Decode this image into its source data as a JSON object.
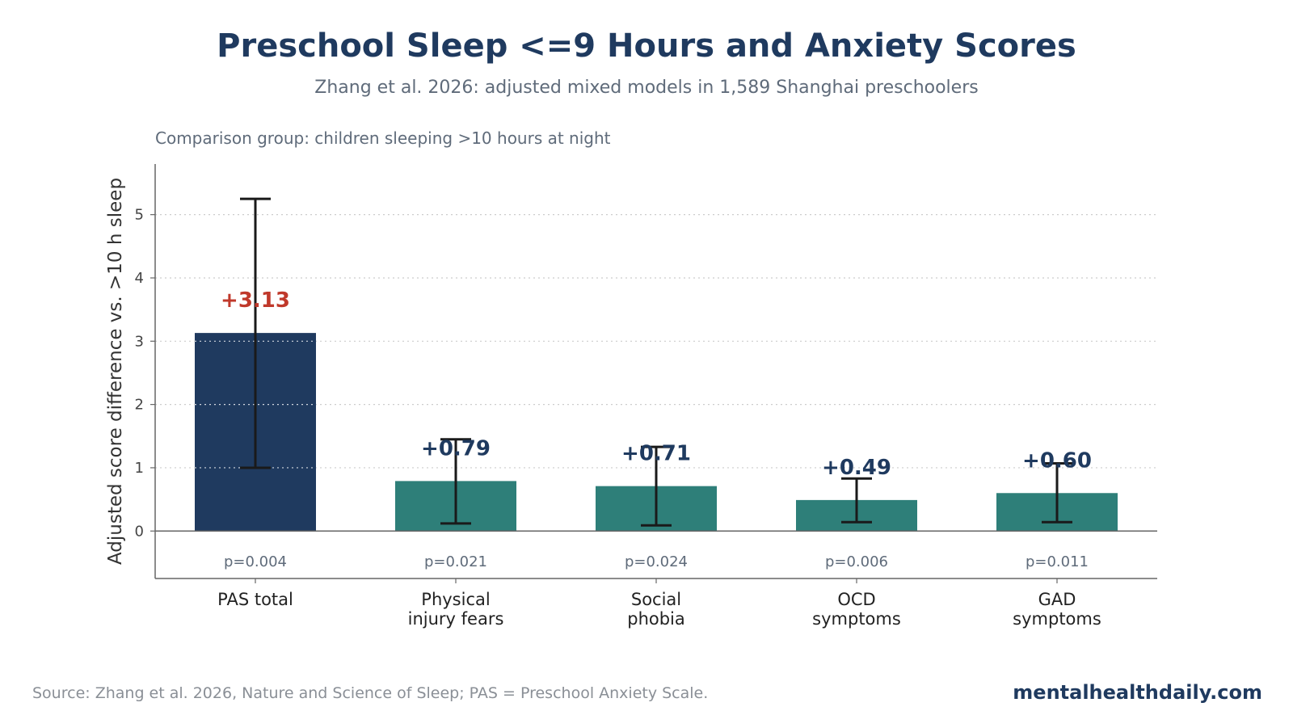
{
  "page": {
    "title": "Preschool Sleep <=9 Hours and Anxiety Scores",
    "subtitle": "Zhang et al. 2026: adjusted mixed models in 1,589 Shanghai preschoolers",
    "source": "Source: Zhang et al. 2026, Nature and Science of Sleep; PAS = Preschool Anxiety Scale.",
    "brand": "mentalhealthdaily.com"
  },
  "chart_data": {
    "type": "bar",
    "title": "Preschool Sleep <=9 Hours and Anxiety Scores",
    "subtitle": "Zhang et al. 2026: adjusted mixed models in 1,589 Shanghai preschoolers",
    "note": "Comparison group: children sleeping >10 hours at night",
    "ylabel": "Adjusted score difference vs. >10 h sleep",
    "xlabel": "",
    "ylim": [
      -0.75,
      5.8
    ],
    "yticks": [
      0,
      1,
      2,
      3,
      4,
      5
    ],
    "grid": "horizontal dotted",
    "categories": [
      [
        "PAS total"
      ],
      [
        "Physical",
        "injury fears"
      ],
      [
        "Social",
        "phobia"
      ],
      [
        "OCD",
        "symptoms"
      ],
      [
        "GAD",
        "symptoms"
      ]
    ],
    "values": [
      3.13,
      0.79,
      0.71,
      0.49,
      0.6
    ],
    "value_labels": [
      "+3.13",
      "+0.79",
      "+0.71",
      "+0.49",
      "+0.60"
    ],
    "ci_low": [
      1.0,
      0.12,
      0.09,
      0.14,
      0.14
    ],
    "ci_high": [
      5.25,
      1.45,
      1.33,
      0.83,
      1.07
    ],
    "p_values": [
      "p=0.004",
      "p=0.021",
      "p=0.024",
      "p=0.006",
      "p=0.011"
    ],
    "colors": {
      "highlight_bar": "#1f3a5f",
      "bar": "#2e7f79",
      "highlight_label": "#c0392b",
      "label": "#1f3a5f",
      "error_bar": "#1a1a1a",
      "grid": "#cccccc",
      "axis": "#666666"
    }
  }
}
